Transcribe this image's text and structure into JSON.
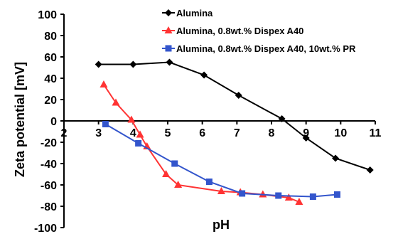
{
  "chart_data": {
    "type": "line",
    "title": "",
    "xlabel": "pH",
    "ylabel": "Zeta potential [mV]",
    "xlim": [
      2,
      11
    ],
    "ylim": [
      -100,
      100
    ],
    "x_ticks": [
      2,
      3,
      4,
      5,
      6,
      7,
      8,
      9,
      10,
      11
    ],
    "y_ticks": [
      100,
      80,
      60,
      40,
      20,
      0,
      -20,
      -40,
      -60,
      -80,
      -100
    ],
    "grid": false,
    "legend_position": "top-right",
    "series": [
      {
        "name": "Alumina",
        "color": "#000000",
        "marker": "diamond",
        "x": [
          3.0,
          4.0,
          5.05,
          6.05,
          7.05,
          8.3,
          9.0,
          9.85,
          10.85
        ],
        "y": [
          53,
          53,
          55,
          43,
          24,
          2,
          -16,
          -35,
          -46
        ]
      },
      {
        "name": "Alumina, 0.8wt.% Dispex A40",
        "color": "#ff3333",
        "marker": "triangle",
        "x": [
          3.15,
          3.5,
          3.95,
          4.2,
          4.4,
          4.95,
          5.3,
          6.55,
          7.1,
          7.75,
          8.5,
          8.8
        ],
        "y": [
          34,
          17,
          1,
          -13,
          -24,
          -50,
          -60,
          -66,
          -67,
          -69,
          -72,
          -76
        ]
      },
      {
        "name": "Alumina, 0.8wt.% Dispex A40, 10wt.% PR",
        "color": "#3355cc",
        "marker": "square",
        "x": [
          3.2,
          4.15,
          5.2,
          6.2,
          7.15,
          8.2,
          9.2,
          9.9
        ],
        "y": [
          -3,
          -21,
          -40,
          -57,
          -68,
          -70,
          -71,
          -69
        ]
      }
    ]
  }
}
